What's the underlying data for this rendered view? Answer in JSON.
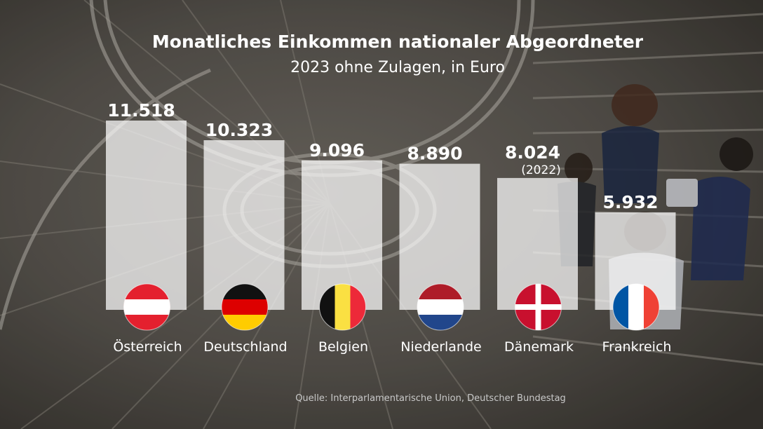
{
  "chart_data": {
    "type": "bar",
    "title": "Monatliches Einkommen nationaler Abgeordneter",
    "subtitle": "2023 ohne Zulagen, in Euro",
    "categories": [
      "Österreich",
      "Deutschland",
      "Belgien",
      "Niederlande",
      "Dänemark",
      "Frankreich"
    ],
    "values": [
      11518,
      10323,
      9096,
      8890,
      8024,
      5932
    ],
    "value_labels": [
      "11.518",
      "10.323",
      "9.096",
      "8.890",
      "8.024",
      "5.932"
    ],
    "notes": [
      "",
      "",
      "",
      "",
      "(2022)",
      ""
    ],
    "flags": [
      "austria-flag-icon",
      "germany-flag-icon",
      "belgium-flag-icon",
      "netherlands-flag-icon",
      "denmark-flag-icon",
      "france-flag-icon"
    ],
    "ylim": [
      0,
      12000
    ],
    "grid": false,
    "legend": "none",
    "bar_color": "#ffffff",
    "source": "Quelle: Interparlamentarische Union, Deutscher Bundestag"
  },
  "colors": {
    "austria_red": "#E4202E",
    "germany_black": "#111111",
    "germany_red": "#DD0000",
    "germany_gold": "#FFCC00",
    "belgium_black": "#111111",
    "belgium_yellow": "#FAE042",
    "belgium_red": "#ED2939",
    "netherlands_red": "#AE1C28",
    "netherlands_blue": "#21468B",
    "denmark_red": "#C8102E",
    "france_blue": "#0055A4",
    "france_red": "#EF4135"
  }
}
